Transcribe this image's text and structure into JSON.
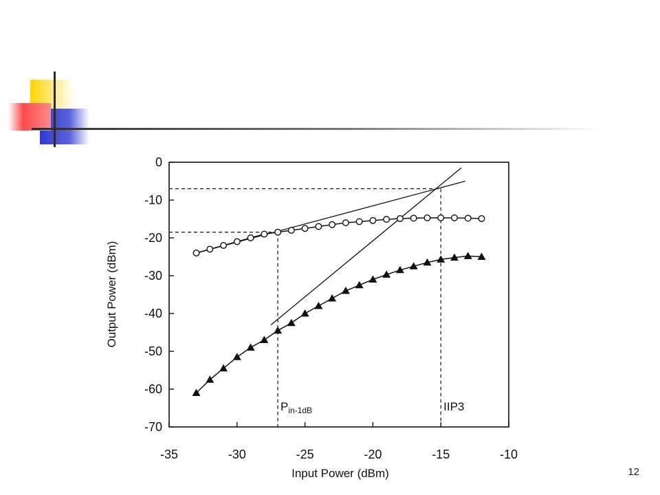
{
  "slide": {
    "page_number": "12",
    "decoration_colors": {
      "yellow": "#ffd400",
      "red": "#ff3b3b",
      "blue": "#2f3ad1",
      "line": "#2b2b2b"
    }
  },
  "chart_data": {
    "type": "line",
    "xlabel": "Input Power (dBm)",
    "ylabel": "Output Power (dBm)",
    "xlim": [
      -35,
      -10
    ],
    "ylim": [
      -70,
      0
    ],
    "xticks": [
      -35,
      -30,
      -25,
      -20,
      -15,
      -10
    ],
    "yticks": [
      0,
      -10,
      -20,
      -30,
      -40,
      -50,
      -60,
      -70
    ],
    "series": [
      {
        "marker": "circle",
        "x": [
          -33,
          -32,
          -31,
          -30,
          -29,
          -28,
          -27,
          -26,
          -25,
          -24,
          -23,
          -22,
          -21,
          -20,
          -19,
          -18,
          -17,
          -16,
          -15,
          -14,
          -13,
          -12
        ],
        "y": [
          -24,
          -23,
          -22,
          -21,
          -20,
          -19,
          -18.5,
          -18,
          -17.5,
          -17,
          -16.5,
          -16,
          -15.7,
          -15.4,
          -15.1,
          -14.9,
          -14.8,
          -14.7,
          -14.7,
          -14.7,
          -14.8,
          -14.9
        ]
      },
      {
        "marker": "triangle",
        "x": [
          -33,
          -32,
          -31,
          -30,
          -29,
          -28,
          -27,
          -26,
          -25,
          -24,
          -23,
          -22,
          -21,
          -20,
          -19,
          -18,
          -17,
          -16,
          -15,
          -14,
          -13,
          -12
        ],
        "y": [
          -61,
          -57.5,
          -54.5,
          -51.5,
          -49,
          -47,
          -44.5,
          -42.5,
          -40,
          -38,
          -36,
          -34,
          -32.5,
          -31,
          -29.7,
          -28.5,
          -27.5,
          -26.5,
          -25.7,
          -25.2,
          -24.8,
          -25
        ]
      }
    ],
    "extrapolation_lines": [
      {
        "x": [
          -33,
          -13.2
        ],
        "y": [
          -24,
          -5
        ]
      },
      {
        "x": [
          -27.5,
          -13.5
        ],
        "y": [
          -43,
          -1.5
        ]
      }
    ],
    "reference_lines": {
      "p1db": {
        "x": -27,
        "y": -18.5
      },
      "iip3": {
        "x": -15,
        "y": -7
      }
    },
    "annotations": [
      {
        "text_main": "P",
        "text_sub": "in-1dB",
        "x": -26.8,
        "y": -64.5
      },
      {
        "text_main": "IIP3",
        "text_sub": "",
        "x": -14.8,
        "y": -64.5
      }
    ]
  }
}
